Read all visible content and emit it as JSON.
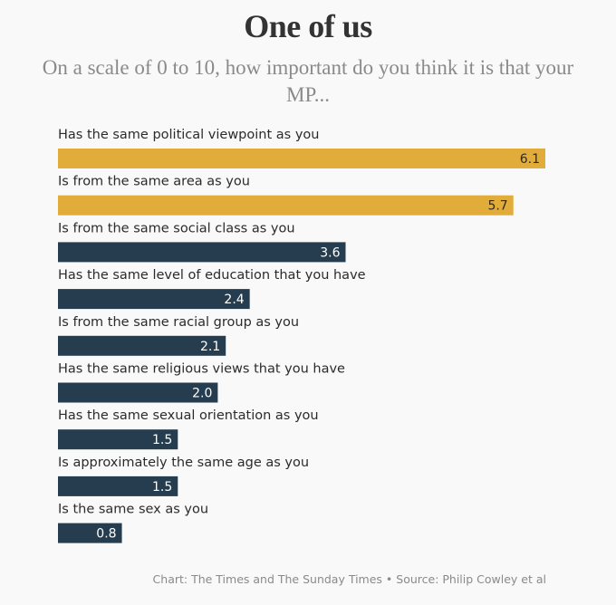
{
  "chart_data": {
    "type": "bar",
    "orientation": "horizontal",
    "title": "One of us",
    "subtitle": "On a scale of 0 to 10, how important do you think it is that your MP...",
    "categories": [
      "Has the same political viewpoint as you",
      "Is from the same area as you",
      "Is from the same social class as you",
      "Has the same level of education that you have",
      "Is from the same racial group as you",
      "Has the same religious views that you have",
      "Has the same sexual orientation as you",
      "Is approximately the same age as you",
      "Is the same sex as you"
    ],
    "values": [
      6.1,
      5.7,
      3.6,
      2.4,
      2.1,
      2.0,
      1.5,
      1.5,
      0.8
    ],
    "value_labels": [
      "6.1",
      "5.7",
      "3.6",
      "2.4",
      "2.1",
      "2.0",
      "1.5",
      "1.5",
      "0.8"
    ],
    "highlight": [
      true,
      true,
      false,
      false,
      false,
      false,
      false,
      false,
      false
    ],
    "xlim": [
      0,
      6.1
    ],
    "grid": false,
    "legend": "none",
    "colors": {
      "highlight": "#e2ac3a",
      "default": "#263d4f",
      "background": "#f9f9f9"
    }
  },
  "footer": "Chart: The Times and The Sunday Times • Source: Philip Cowley et al"
}
